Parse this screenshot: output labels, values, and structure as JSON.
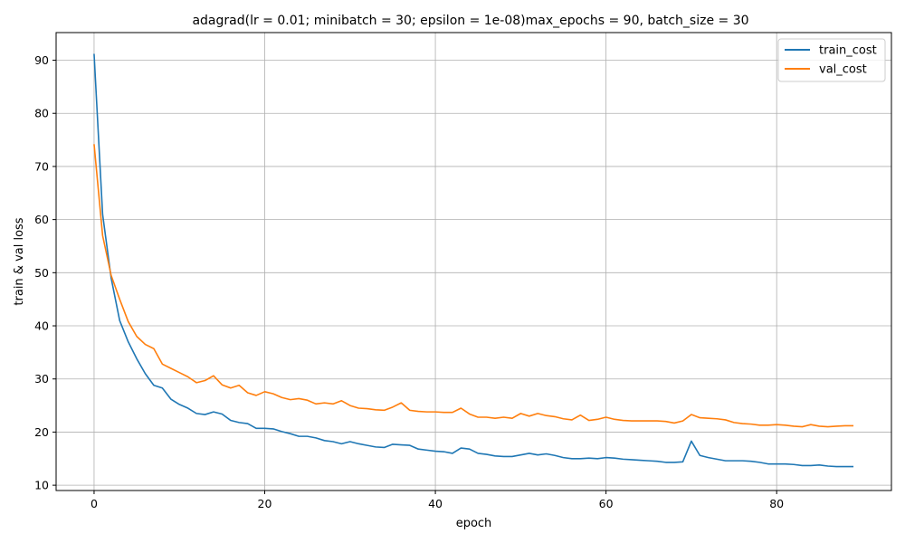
{
  "chart_data": {
    "type": "line",
    "title": "adagrad(lr = 0.01; minibatch = 30; epsilon = 1e-08)max_epochs = 90, batch_size = 30",
    "xlabel": "epoch",
    "ylabel": "train & val loss",
    "xlim": [
      -4.45,
      93.45
    ],
    "ylim": [
      9.0,
      95.2
    ],
    "xticks": [
      0,
      20,
      40,
      60,
      80
    ],
    "yticks": [
      10,
      20,
      30,
      40,
      50,
      60,
      70,
      80,
      90
    ],
    "grid": true,
    "legend_position": "top-right",
    "series": [
      {
        "name": "train_cost",
        "color": "#1f77b4",
        "values": [
          91.2,
          61.0,
          49.0,
          41.0,
          37.0,
          33.8,
          31.0,
          28.8,
          28.3,
          26.2,
          25.2,
          24.5,
          23.5,
          23.3,
          23.8,
          23.4,
          22.2,
          21.8,
          21.6,
          20.7,
          20.7,
          20.6,
          20.1,
          19.7,
          19.2,
          19.2,
          18.9,
          18.4,
          18.2,
          17.8,
          18.2,
          17.8,
          17.5,
          17.2,
          17.1,
          17.7,
          17.6,
          17.5,
          16.8,
          16.6,
          16.4,
          16.3,
          16.0,
          17.0,
          16.8,
          16.0,
          15.8,
          15.5,
          15.4,
          15.4,
          15.7,
          16.0,
          15.7,
          15.9,
          15.6,
          15.2,
          15.0,
          15.0,
          15.1,
          15.0,
          15.2,
          15.1,
          14.9,
          14.8,
          14.7,
          14.6,
          14.5,
          14.3,
          14.3,
          14.4,
          18.3,
          15.6,
          15.2,
          14.9,
          14.6,
          14.6,
          14.6,
          14.5,
          14.3,
          14.0,
          14.0,
          14.0,
          13.9,
          13.7,
          13.7,
          13.8,
          13.6,
          13.5,
          13.5,
          13.5
        ]
      },
      {
        "name": "val_cost",
        "color": "#ff7f0e",
        "values": [
          74.2,
          57.0,
          49.5,
          45.0,
          40.8,
          38.0,
          36.5,
          35.7,
          32.8,
          32.0,
          31.2,
          30.4,
          29.3,
          29.7,
          30.6,
          28.9,
          28.3,
          28.8,
          27.4,
          26.9,
          27.6,
          27.2,
          26.5,
          26.1,
          26.3,
          26.0,
          25.3,
          25.5,
          25.3,
          25.9,
          25.0,
          24.5,
          24.4,
          24.2,
          24.1,
          24.7,
          25.5,
          24.1,
          23.9,
          23.8,
          23.8,
          23.7,
          23.7,
          24.5,
          23.4,
          22.8,
          22.8,
          22.6,
          22.8,
          22.6,
          23.5,
          23.0,
          23.5,
          23.1,
          22.9,
          22.5,
          22.3,
          23.2,
          22.2,
          22.4,
          22.8,
          22.4,
          22.2,
          22.1,
          22.1,
          22.1,
          22.1,
          22.0,
          21.7,
          22.1,
          23.3,
          22.7,
          22.6,
          22.5,
          22.3,
          21.8,
          21.6,
          21.5,
          21.3,
          21.3,
          21.4,
          21.3,
          21.1,
          21.0,
          21.4,
          21.1,
          21.0,
          21.1,
          21.2,
          21.2
        ]
      }
    ]
  }
}
